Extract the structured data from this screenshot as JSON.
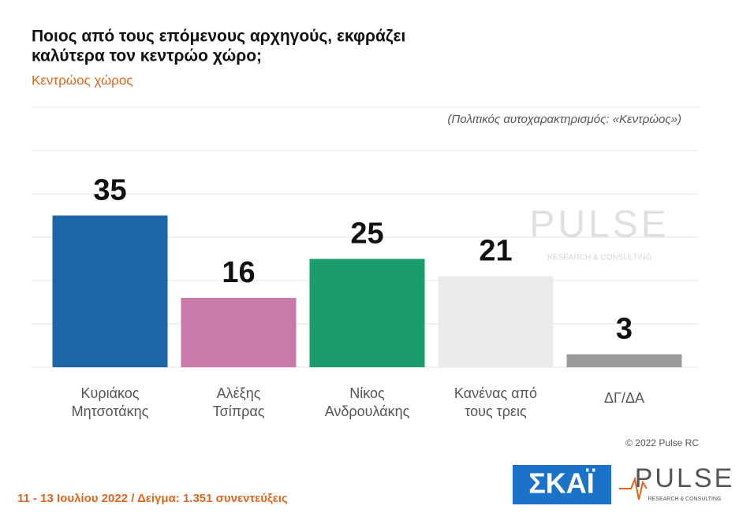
{
  "chart_data": {
    "type": "bar",
    "title": [
      "Ποιος από τους επόμενους αρχηγούς, εκφράζει",
      "καλύτερα τον κεντρώο χώρο;"
    ],
    "subtitle": "Κεντρώος χώρος",
    "annotation": "(Πολιτικός αυτοχαρακτηρισμός: «Κεντρώος»)",
    "categories": [
      [
        "Κυριάκος",
        "Μητσοτάκης"
      ],
      [
        "Αλέξης",
        "Τσίπρας"
      ],
      [
        "Νίκος",
        "Ανδρουλάκης"
      ],
      [
        "Κανένας από",
        "τους τρεις"
      ],
      [
        "ΔΓ/ΔΑ"
      ]
    ],
    "values": [
      35,
      16,
      25,
      21,
      3
    ],
    "colors": [
      "#1b66a6",
      "#c97aa9",
      "#1a9d6b",
      "#ebebeb",
      "#9b9b9b"
    ],
    "ylim": [
      0,
      60
    ],
    "yticks": [
      0,
      10,
      20,
      30,
      40,
      50,
      60
    ],
    "grid": true,
    "copyright": "© 2022 Pulse RC",
    "footer": "11 - 13 Ιουλίου 2022 / Δείγμα: 1.351 συνεντεύξεις",
    "logos": {
      "skai": "ΣΚΑΪ",
      "pulse": "PULSE",
      "pulse_tagline": "RESEARCH & CONSULTING"
    }
  }
}
